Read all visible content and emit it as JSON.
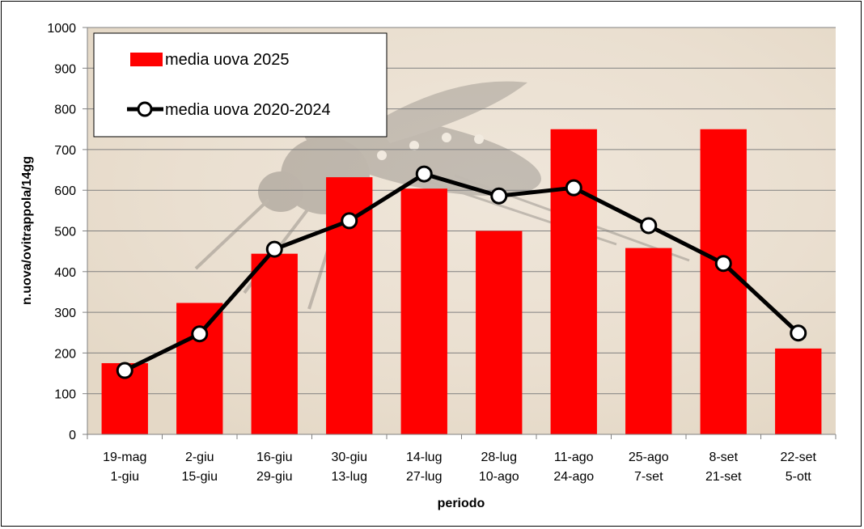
{
  "chart_data": {
    "type": "bar",
    "title": "",
    "xlabel": "periodo",
    "ylabel": "n.uova/ovitrappola/14gg",
    "ylim": [
      0,
      1000
    ],
    "yticks": [
      0,
      100,
      200,
      300,
      400,
      500,
      600,
      700,
      800,
      900,
      1000
    ],
    "categories": [
      [
        "19-mag",
        "1-giu"
      ],
      [
        "2-giu",
        "15-giu"
      ],
      [
        "16-giu",
        "29-giu"
      ],
      [
        "30-giu",
        "13-lug"
      ],
      [
        "14-lug",
        "27-lug"
      ],
      [
        "28-lug",
        "10-ago"
      ],
      [
        "11-ago",
        "24-ago"
      ],
      [
        "25-ago",
        "7-set"
      ],
      [
        "8-set",
        "21-set"
      ],
      [
        "22-set",
        "5-ott"
      ]
    ],
    "series": [
      {
        "name": "media uova 2025",
        "kind": "bar",
        "color": "#ff0000",
        "values": [
          175,
          323,
          444,
          632,
          604,
          500,
          750,
          458,
          750,
          211
        ]
      },
      {
        "name": "media uova 2020-2024",
        "kind": "line",
        "color": "#000000",
        "values": [
          157,
          247,
          455,
          525,
          640,
          586,
          606,
          513,
          420,
          249
        ]
      }
    ],
    "grid": true,
    "legend_position": "top-left",
    "background": "photo of a tiger mosquito (faded)"
  }
}
